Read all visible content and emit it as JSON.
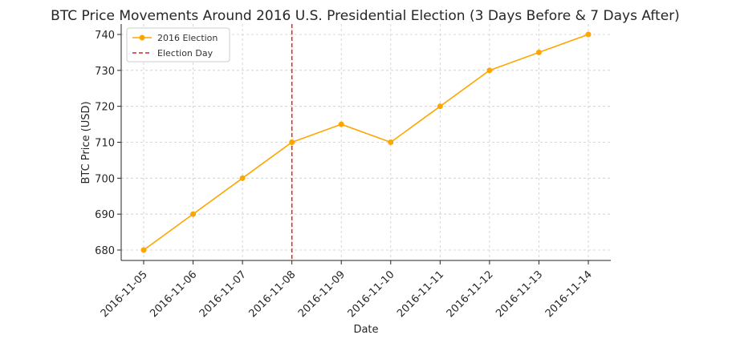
{
  "chart_data": {
    "type": "line",
    "title": "BTC Price Movements Around 2016 U.S. Presidential Election (3 Days Before & 7 Days After)",
    "xlabel": "Date",
    "ylabel": "BTC Price (USD)",
    "categories": [
      "2016-11-05",
      "2016-11-06",
      "2016-11-07",
      "2016-11-08",
      "2016-11-09",
      "2016-11-10",
      "2016-11-11",
      "2016-11-12",
      "2016-11-13",
      "2016-11-14"
    ],
    "series": [
      {
        "name": "2016 Election",
        "color": "#ffa500",
        "values": [
          680,
          690,
          700,
          710,
          715,
          710,
          720,
          730,
          735,
          740
        ]
      }
    ],
    "vline": {
      "name": "Election Day",
      "x": "2016-11-08",
      "color": "#e32020",
      "style": "dashed"
    },
    "yticks": [
      680,
      690,
      700,
      710,
      720,
      730,
      740
    ],
    "ylim": [
      677.1,
      742.9
    ],
    "grid": true,
    "legend_position": "top-left"
  }
}
